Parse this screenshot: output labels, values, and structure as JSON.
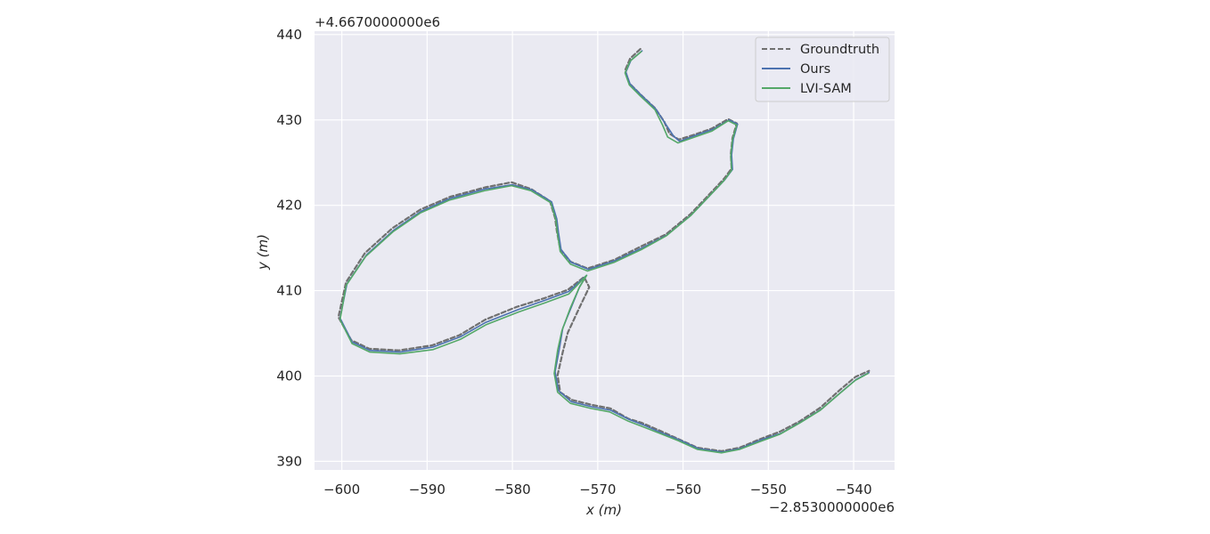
{
  "chart_data": {
    "type": "line",
    "title": "",
    "xlabel": "x (m)",
    "ylabel": "y (m)",
    "x_offset_text": "−2.8530000000e6",
    "y_offset_text": "+4.6670000000e6",
    "xlim": [
      -603.2,
      -535.2
    ],
    "ylim": [
      389.0,
      440.4
    ],
    "xticks": [
      -600,
      -590,
      -580,
      -570,
      -560,
      -550,
      -540
    ],
    "yticks": [
      390,
      400,
      410,
      420,
      430,
      440
    ],
    "xtick_labels": [
      "−600",
      "−590",
      "−580",
      "−570",
      "−560",
      "−550",
      "−540"
    ],
    "ytick_labels": [
      "390",
      "400",
      "410",
      "420",
      "430",
      "440"
    ],
    "grid": true,
    "legend_position": "top-right",
    "colors": {
      "background": "#eaeaf2",
      "grid": "#ffffff",
      "groundtruth": "#707070",
      "ours": "#4c72b0",
      "lvisam": "#55a868"
    },
    "series": [
      {
        "name": "Groundtruth",
        "style": "dashed",
        "points": [
          [
            -565.0,
            438.3
          ],
          [
            -566.2,
            437.2
          ],
          [
            -566.8,
            435.8
          ],
          [
            -566.3,
            434.3
          ],
          [
            -565.0,
            433.0
          ],
          [
            -563.3,
            431.4
          ],
          [
            -562.2,
            429.8
          ],
          [
            -561.6,
            428.4
          ],
          [
            -560.5,
            427.7
          ],
          [
            -558.6,
            428.3
          ],
          [
            -556.6,
            429.0
          ],
          [
            -554.7,
            430.1
          ],
          [
            -553.7,
            429.6
          ],
          [
            -554.2,
            427.9
          ],
          [
            -554.4,
            426.0
          ],
          [
            -554.3,
            424.3
          ],
          [
            -555.2,
            423.1
          ],
          [
            -557.0,
            421.2
          ],
          [
            -559.1,
            419.0
          ],
          [
            -562.0,
            416.6
          ],
          [
            -564.9,
            415.2
          ],
          [
            -568.1,
            413.6
          ],
          [
            -571.2,
            412.6
          ],
          [
            -573.2,
            413.4
          ],
          [
            -574.4,
            414.9
          ],
          [
            -574.8,
            417.0
          ],
          [
            -575.0,
            418.5
          ],
          [
            -575.6,
            420.5
          ],
          [
            -577.8,
            421.9
          ],
          [
            -580.1,
            422.7
          ],
          [
            -583.2,
            422.1
          ],
          [
            -587.3,
            421.0
          ],
          [
            -590.8,
            419.5
          ],
          [
            -594.1,
            417.3
          ],
          [
            -597.3,
            414.4
          ],
          [
            -599.5,
            411.0
          ],
          [
            -600.4,
            406.9
          ],
          [
            -598.9,
            404.2
          ],
          [
            -596.8,
            403.2
          ],
          [
            -593.3,
            403.0
          ],
          [
            -589.4,
            403.6
          ],
          [
            -586.2,
            404.8
          ],
          [
            -583.2,
            406.6
          ],
          [
            -579.5,
            408.1
          ],
          [
            -576.3,
            409.1
          ],
          [
            -573.5,
            410.1
          ],
          [
            -571.6,
            411.6
          ],
          [
            -571.0,
            410.4
          ],
          [
            -572.1,
            408.1
          ],
          [
            -573.5,
            405.1
          ],
          [
            -574.1,
            402.8
          ],
          [
            -574.7,
            400.1
          ],
          [
            -574.4,
            398.1
          ],
          [
            -573.0,
            397.2
          ],
          [
            -570.6,
            396.6
          ],
          [
            -568.5,
            396.2
          ],
          [
            -566.4,
            395.0
          ],
          [
            -564.8,
            394.5
          ],
          [
            -562.5,
            393.5
          ],
          [
            -560.5,
            392.6
          ],
          [
            -558.3,
            391.6
          ],
          [
            -555.5,
            391.2
          ],
          [
            -553.4,
            391.6
          ],
          [
            -551.0,
            392.6
          ],
          [
            -548.6,
            393.5
          ],
          [
            -546.3,
            394.7
          ],
          [
            -543.9,
            396.3
          ],
          [
            -541.7,
            398.3
          ],
          [
            -539.8,
            399.9
          ],
          [
            -538.2,
            400.6
          ]
        ]
      },
      {
        "name": "Ours",
        "style": "solid",
        "points": [
          [
            -564.8,
            438.1
          ],
          [
            -566.1,
            437.0
          ],
          [
            -566.7,
            435.6
          ],
          [
            -566.2,
            434.2
          ],
          [
            -564.9,
            432.9
          ],
          [
            -563.2,
            431.3
          ],
          [
            -562.1,
            429.6
          ],
          [
            -561.1,
            428.1
          ],
          [
            -560.4,
            427.5
          ],
          [
            -558.5,
            428.2
          ],
          [
            -556.5,
            428.9
          ],
          [
            -554.6,
            430.0
          ],
          [
            -553.6,
            429.5
          ],
          [
            -554.1,
            427.8
          ],
          [
            -554.3,
            425.9
          ],
          [
            -554.2,
            424.2
          ],
          [
            -555.1,
            423.0
          ],
          [
            -556.9,
            421.1
          ],
          [
            -559.0,
            418.9
          ],
          [
            -561.9,
            416.5
          ],
          [
            -564.8,
            415.0
          ],
          [
            -568.0,
            413.5
          ],
          [
            -571.1,
            412.5
          ],
          [
            -573.1,
            413.3
          ],
          [
            -574.3,
            414.8
          ],
          [
            -574.6,
            416.8
          ],
          [
            -574.8,
            418.4
          ],
          [
            -575.4,
            420.4
          ],
          [
            -577.7,
            421.8
          ],
          [
            -580.0,
            422.4
          ],
          [
            -583.2,
            421.9
          ],
          [
            -587.3,
            420.8
          ],
          [
            -590.7,
            419.3
          ],
          [
            -593.9,
            417.1
          ],
          [
            -597.1,
            414.2
          ],
          [
            -599.4,
            410.8
          ],
          [
            -600.2,
            406.8
          ],
          [
            -598.8,
            404.0
          ],
          [
            -596.7,
            403.0
          ],
          [
            -593.2,
            402.8
          ],
          [
            -589.3,
            403.4
          ],
          [
            -586.1,
            404.6
          ],
          [
            -583.1,
            406.3
          ],
          [
            -579.3,
            407.8
          ],
          [
            -576.1,
            408.9
          ],
          [
            -573.4,
            409.9
          ],
          [
            -571.3,
            411.8
          ],
          [
            -572.1,
            410.5
          ],
          [
            -573.0,
            408.3
          ],
          [
            -574.1,
            405.6
          ],
          [
            -574.5,
            403.2
          ],
          [
            -575.0,
            400.5
          ],
          [
            -574.6,
            398.3
          ],
          [
            -573.1,
            397.0
          ],
          [
            -570.7,
            396.4
          ],
          [
            -568.5,
            396.0
          ],
          [
            -566.3,
            394.9
          ],
          [
            -564.7,
            394.3
          ],
          [
            -562.4,
            393.3
          ],
          [
            -560.4,
            392.5
          ],
          [
            -558.2,
            391.5
          ],
          [
            -555.4,
            391.1
          ],
          [
            -553.3,
            391.5
          ],
          [
            -550.9,
            392.5
          ],
          [
            -548.5,
            393.3
          ],
          [
            -546.2,
            394.6
          ],
          [
            -543.8,
            396.1
          ],
          [
            -541.6,
            398.0
          ],
          [
            -539.7,
            399.6
          ],
          [
            -538.2,
            400.4
          ]
        ]
      },
      {
        "name": "LVI-SAM",
        "style": "solid",
        "points": [
          [
            -564.9,
            438.0
          ],
          [
            -566.2,
            436.9
          ],
          [
            -566.8,
            435.5
          ],
          [
            -566.3,
            434.1
          ],
          [
            -565.0,
            432.8
          ],
          [
            -563.3,
            431.2
          ],
          [
            -562.4,
            429.4
          ],
          [
            -561.8,
            428.0
          ],
          [
            -560.6,
            427.3
          ],
          [
            -558.6,
            428.0
          ],
          [
            -556.6,
            428.7
          ],
          [
            -554.7,
            429.9
          ],
          [
            -553.7,
            429.4
          ],
          [
            -554.2,
            427.7
          ],
          [
            -554.4,
            425.8
          ],
          [
            -554.3,
            424.1
          ],
          [
            -555.2,
            422.9
          ],
          [
            -557.0,
            421.0
          ],
          [
            -559.1,
            418.8
          ],
          [
            -562.0,
            416.4
          ],
          [
            -564.9,
            414.8
          ],
          [
            -568.1,
            413.3
          ],
          [
            -571.2,
            412.3
          ],
          [
            -573.2,
            413.1
          ],
          [
            -574.4,
            414.6
          ],
          [
            -574.7,
            416.6
          ],
          [
            -574.9,
            418.3
          ],
          [
            -575.5,
            420.3
          ],
          [
            -577.8,
            421.7
          ],
          [
            -580.1,
            422.3
          ],
          [
            -583.3,
            421.7
          ],
          [
            -587.4,
            420.6
          ],
          [
            -590.8,
            419.1
          ],
          [
            -594.0,
            416.9
          ],
          [
            -597.2,
            414.0
          ],
          [
            -599.5,
            410.6
          ],
          [
            -600.2,
            406.6
          ],
          [
            -598.8,
            403.8
          ],
          [
            -596.7,
            402.8
          ],
          [
            -593.2,
            402.6
          ],
          [
            -589.3,
            403.1
          ],
          [
            -586.1,
            404.3
          ],
          [
            -583.1,
            406.0
          ],
          [
            -579.3,
            407.5
          ],
          [
            -576.1,
            408.6
          ],
          [
            -573.4,
            409.6
          ],
          [
            -571.3,
            411.8
          ],
          [
            -572.2,
            410.3
          ],
          [
            -573.2,
            408.0
          ],
          [
            -574.2,
            405.3
          ],
          [
            -574.7,
            403.0
          ],
          [
            -575.1,
            400.3
          ],
          [
            -574.7,
            398.1
          ],
          [
            -573.2,
            396.8
          ],
          [
            -570.8,
            396.2
          ],
          [
            -568.6,
            395.8
          ],
          [
            -566.4,
            394.7
          ],
          [
            -564.8,
            394.1
          ],
          [
            -562.5,
            393.2
          ],
          [
            -560.5,
            392.4
          ],
          [
            -558.3,
            391.4
          ],
          [
            -555.5,
            391.0
          ],
          [
            -553.4,
            391.4
          ],
          [
            -551.0,
            392.3
          ],
          [
            -548.6,
            393.2
          ],
          [
            -546.3,
            394.5
          ],
          [
            -543.9,
            396.0
          ],
          [
            -541.7,
            397.9
          ],
          [
            -539.8,
            399.5
          ],
          [
            -538.3,
            400.3
          ]
        ]
      }
    ]
  }
}
